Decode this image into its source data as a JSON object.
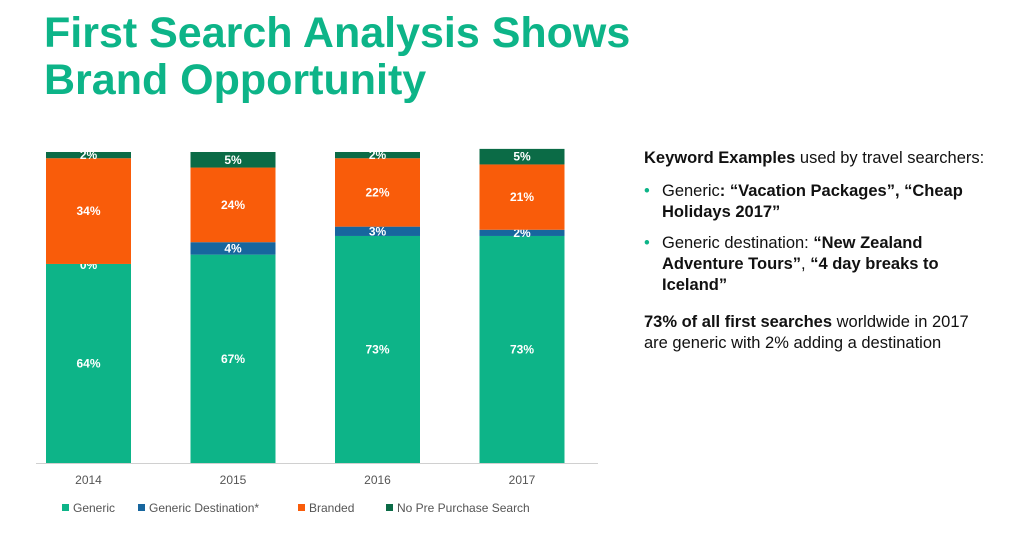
{
  "title_line1": "First Search Analysis Shows",
  "title_line2": "Brand Opportunity",
  "chart_data": {
    "type": "bar",
    "stacked": true,
    "categories": [
      "2014",
      "2015",
      "2016",
      "2017"
    ],
    "series": [
      {
        "name": "Generic",
        "color": "#0db488",
        "values": [
          64,
          67,
          73,
          73
        ],
        "labels": [
          "64%",
          "67%",
          "73%",
          "73%"
        ]
      },
      {
        "name": "Generic Destination*",
        "color": "#17669e",
        "values": [
          0,
          4,
          3,
          2
        ],
        "labels": [
          "0%",
          "4%",
          "3%",
          "2%"
        ]
      },
      {
        "name": "Branded",
        "color": "#f95c0a",
        "values": [
          34,
          24,
          22,
          21
        ],
        "labels": [
          "34%",
          "24%",
          "22%",
          "21%"
        ]
      },
      {
        "name": "No Pre Purchase Search",
        "color": "#0b6b46",
        "values": [
          2,
          5,
          2,
          5
        ],
        "labels": [
          "2%",
          "5%",
          "2%",
          "5%"
        ]
      }
    ],
    "ylim": [
      0,
      100
    ],
    "grid": false,
    "legend": "bottom"
  },
  "sidebar": {
    "heading_bold": "Keyword Examples",
    "heading_rest": " used by travel searchers:",
    "bullet_glyph": "•",
    "item1_a": "Generic",
    "item1_b": ": “Vacation Packages”, “Cheap Holidays 2017”",
    "item2_a": "Generic destination: ",
    "item2_b": "“New Zealand Adventure Tours”",
    "item2_c": ", ",
    "item2_d": "“4 day breaks to Iceland”",
    "note_bold": "73% of all first searches",
    "note_rest": " worldwide in 2017 are generic with 2% adding a destination"
  }
}
